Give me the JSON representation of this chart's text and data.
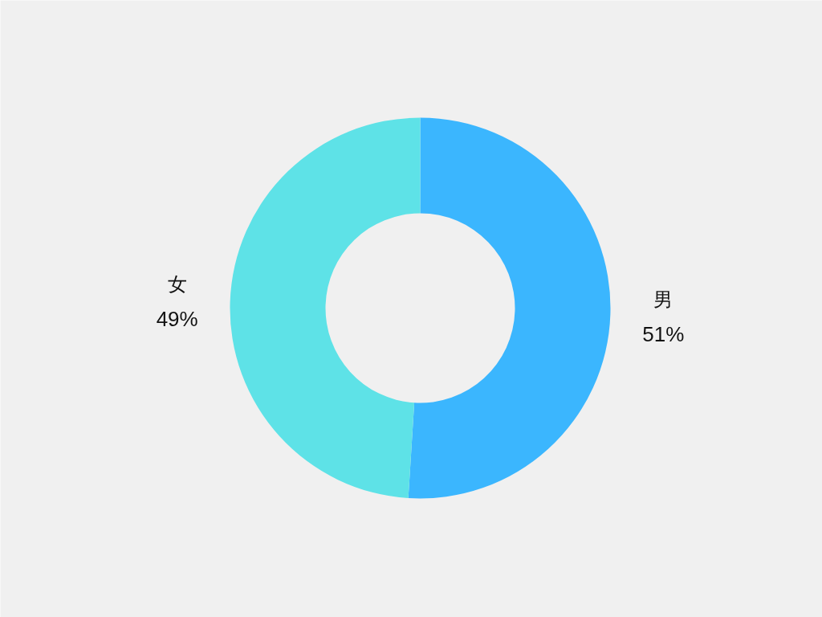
{
  "chart_data": {
    "type": "donut",
    "categories": [
      "男",
      "女"
    ],
    "values": [
      51,
      49
    ],
    "colors": [
      "#3bb6fe",
      "#5ee2e7"
    ],
    "value_labels": [
      "51%",
      "49%"
    ]
  }
}
